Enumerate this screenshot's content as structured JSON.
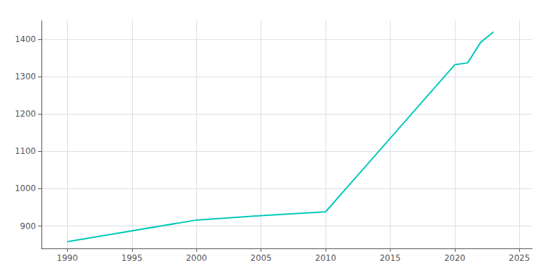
{
  "chart_data": {
    "type": "line",
    "x": [
      1990,
      2000,
      2005,
      2010,
      2020,
      2021,
      2022,
      2023
    ],
    "values": [
      858,
      916,
      928,
      938,
      1332,
      1337,
      1392,
      1420
    ],
    "color": "#00C8B8",
    "xlim": [
      1988,
      2026
    ],
    "ylim": [
      840,
      1450
    ],
    "xticks": [
      1990,
      1995,
      2000,
      2005,
      2010,
      2015,
      2020,
      2025
    ],
    "yticks": [
      900,
      1000,
      1100,
      1200,
      1300,
      1400
    ],
    "grid": true
  }
}
